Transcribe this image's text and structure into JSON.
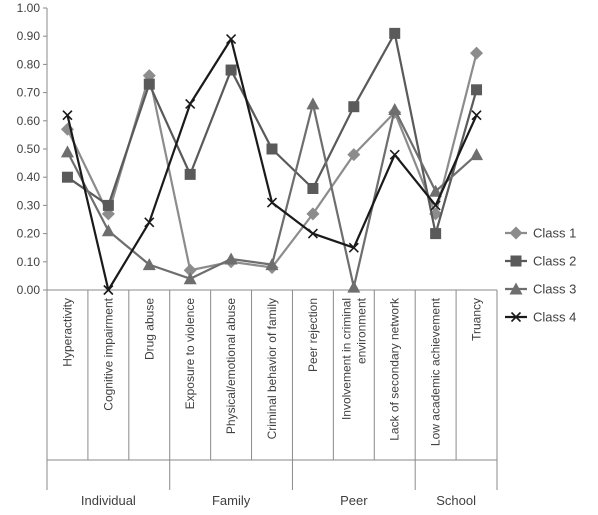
{
  "chart_data": {
    "type": "line",
    "title": "",
    "xlabel": "",
    "ylabel": "",
    "ylim": [
      0,
      1
    ],
    "yticks": [
      "0.00",
      "0.10",
      "0.20",
      "0.30",
      "0.40",
      "0.50",
      "0.60",
      "0.70",
      "0.80",
      "0.90",
      "1.00"
    ],
    "grid": false,
    "legend": "right",
    "categories": [
      [
        "Hyperactivity"
      ],
      [
        "Cognitive impairment"
      ],
      [
        "Drug abuse"
      ],
      [
        "Exposure to violence"
      ],
      [
        "Physical/emotional abuse"
      ],
      [
        "Criminal behavior of family"
      ],
      [
        "Peer rejection"
      ],
      [
        "Involvement in criminal",
        "environment"
      ],
      [
        "Lack of secondary network"
      ],
      [
        "Low academic achievement"
      ],
      [
        "Truancy"
      ]
    ],
    "groups": [
      {
        "label": "Individual",
        "count": 3
      },
      {
        "label": "Family",
        "count": 3
      },
      {
        "label": "Peer",
        "count": 3
      },
      {
        "label": "School",
        "count": 2
      }
    ],
    "series": [
      {
        "name": "Class 1",
        "marker": "diamond",
        "color": "#8c8c8c",
        "values": [
          0.57,
          0.27,
          0.76,
          0.07,
          0.1,
          0.08,
          0.27,
          0.48,
          0.63,
          0.27,
          0.84
        ]
      },
      {
        "name": "Class 2",
        "marker": "square",
        "color": "#5a5a5a",
        "values": [
          0.4,
          0.3,
          0.73,
          0.41,
          0.78,
          0.5,
          0.36,
          0.65,
          0.91,
          0.2,
          0.71
        ]
      },
      {
        "name": "Class 3",
        "marker": "triangle",
        "color": "#6e6e6e",
        "values": [
          0.49,
          0.21,
          0.09,
          0.04,
          0.11,
          0.09,
          0.66,
          0.01,
          0.64,
          0.35,
          0.48
        ]
      },
      {
        "name": "Class 4",
        "marker": "x",
        "color": "#1a1a1a",
        "values": [
          0.62,
          0.0,
          0.24,
          0.66,
          0.89,
          0.31,
          0.2,
          0.15,
          0.48,
          0.3,
          0.62
        ]
      }
    ]
  }
}
